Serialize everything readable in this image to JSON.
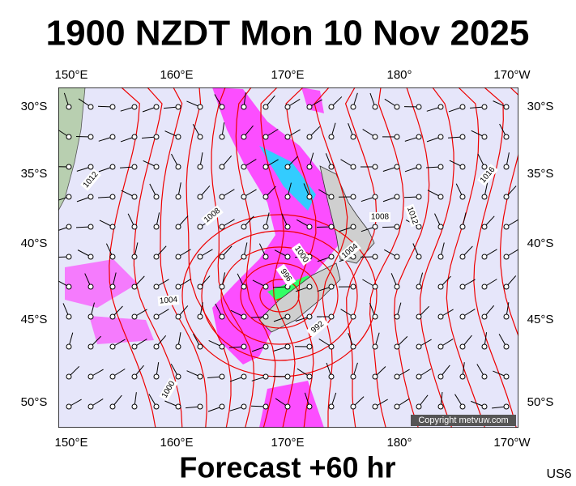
{
  "header": {
    "title": "1900 NZDT Mon 10 Nov 2025"
  },
  "map": {
    "longitude_labels": [
      "150°E",
      "160°E",
      "170°E",
      "180°",
      "170°W"
    ],
    "latitude_labels": [
      "30°S",
      "35°S",
      "40°S",
      "45°S",
      "50°S"
    ],
    "isobar_labels": [
      "1012",
      "1008",
      "1004",
      "1000",
      "1000",
      "996",
      "992",
      "1004",
      "1008",
      "1012",
      "1016"
    ],
    "credit": "Copyright metvuw.com"
  },
  "footer": {
    "forecast": "Forecast +60 hr",
    "chart_id": "US6"
  }
}
